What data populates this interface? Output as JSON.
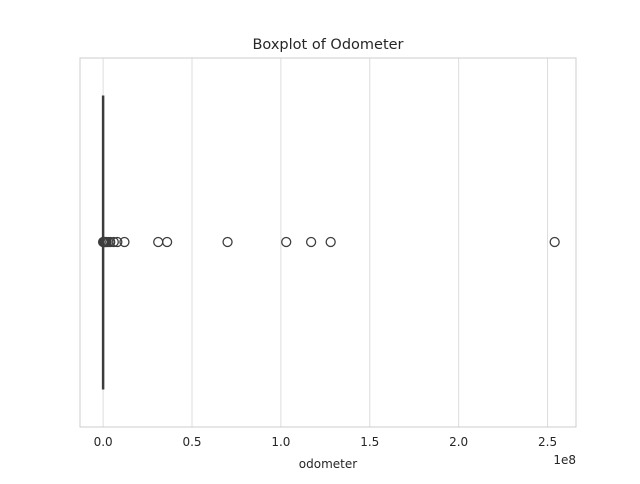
{
  "chart_data": {
    "type": "box",
    "title": "Boxplot of Odometer",
    "xlabel": "odometer",
    "ylabel": "",
    "x_scale_label": "1e8",
    "xlim": [
      -0.13,
      2.66
    ],
    "ticks": [
      0.0,
      0.5,
      1.0,
      1.5,
      2.0,
      2.5
    ],
    "tick_labels": [
      "0.0",
      "0.5",
      "1.0",
      "1.5",
      "2.0",
      "2.5"
    ],
    "grid": "x",
    "series": [
      {
        "stats": {
          "whisker_low": 0.0,
          "q1": 0.0,
          "median": 0.0,
          "q3": 0.0,
          "whisker_high": 0.0
        },
        "outliers": [
          0.0,
          0.005,
          0.01,
          0.015,
          0.02,
          0.03,
          0.04,
          0.06,
          0.08,
          0.12,
          0.31,
          0.36,
          0.7,
          1.03,
          1.17,
          1.28,
          2.54
        ]
      }
    ],
    "colors": {
      "box_line": "#3d3d3d",
      "grid": "#dddddd",
      "spine": "#cccccc",
      "text": "#262626"
    }
  }
}
